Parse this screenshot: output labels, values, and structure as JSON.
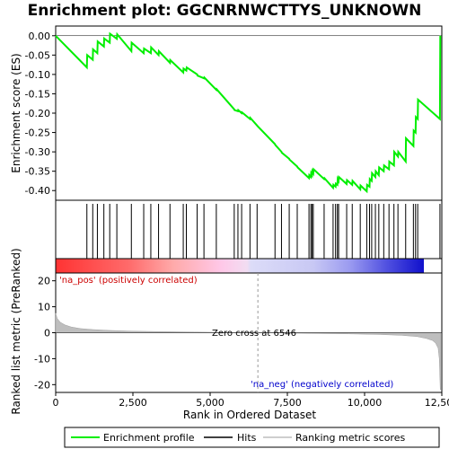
{
  "chart_data": {
    "type": "line",
    "title": "Enrichment plot: GGCNRNWCTTYS_UNKNOWN",
    "xlabel": "Rank in Ordered Dataset",
    "ylabel_top": "Enrichment score (ES)",
    "ylabel_bottom": "Ranked list metric (PreRanked)",
    "x_range": [
      0,
      12500
    ],
    "es_ylim": [
      -0.425,
      0.025
    ],
    "metric_ylim": [
      -23,
      23
    ],
    "x_ticks": [
      0,
      2500,
      5000,
      7500,
      10000,
      12500
    ],
    "x_tick_labels": [
      "0",
      "2,500",
      "5,000",
      "7,500",
      "10,000",
      "12,500"
    ],
    "es_ticks": [
      0.0,
      -0.05,
      -0.1,
      -0.15,
      -0.2,
      -0.25,
      -0.3,
      -0.35,
      -0.4
    ],
    "es_tick_labels": [
      "0.00",
      "-0.05",
      "-0.10",
      "-0.15",
      "-0.20",
      "-0.25",
      "-0.30",
      "-0.35",
      "-0.40"
    ],
    "metric_ticks": [
      20,
      10,
      0,
      -10,
      -20
    ],
    "metric_tick_labels": [
      "20",
      "10",
      "0",
      "-10",
      "-20"
    ],
    "zero_cross": 6546,
    "zero_cross_label": "Zero cross at 6546",
    "pos_label": "'na_pos' (positively correlated)",
    "neg_label": "'na_neg' (negatively correlated)",
    "enrichment_profile": {
      "x": [
        0,
        1010,
        1020,
        1200,
        1210,
        1350,
        1360,
        1560,
        1570,
        1750,
        1760,
        1980,
        1990,
        2450,
        2460,
        2850,
        2860,
        3080,
        3090,
        3330,
        3340,
        3700,
        3710,
        4130,
        4140,
        4230,
        4240,
        4580,
        4590,
        4800,
        4810,
        5200,
        5210,
        5780,
        5790,
        5900,
        5910,
        6020,
        6030,
        6290,
        6300,
        6520,
        6530,
        7100,
        7110,
        7310,
        7320,
        7560,
        7570,
        7820,
        7830,
        8200,
        8210,
        8260,
        8270,
        8300,
        8310,
        8340,
        8350,
        8690,
        8700,
        8980,
        8990,
        9060,
        9070,
        9120,
        9130,
        9160,
        9170,
        9420,
        9430,
        9600,
        9610,
        9860,
        9870,
        10070,
        10080,
        10160,
        10170,
        10230,
        10240,
        10350,
        10360,
        10460,
        10470,
        10620,
        10630,
        10790,
        10800,
        10950,
        10960,
        11080,
        11090,
        11330,
        11340,
        11580,
        11590,
        11650,
        11660,
        11720,
        11730,
        12440,
        12450
      ],
      "y": [
        0.0,
        -0.082,
        -0.05,
        -0.062,
        -0.035,
        -0.045,
        -0.015,
        -0.028,
        -0.007,
        -0.018,
        0.005,
        -0.008,
        0.004,
        -0.04,
        -0.018,
        -0.045,
        -0.033,
        -0.045,
        -0.03,
        -0.05,
        -0.04,
        -0.07,
        -0.063,
        -0.095,
        -0.085,
        -0.09,
        -0.082,
        -0.1,
        -0.103,
        -0.11,
        -0.108,
        -0.14,
        -0.138,
        -0.19,
        -0.192,
        -0.195,
        -0.192,
        -0.2,
        -0.198,
        -0.215,
        -0.212,
        -0.232,
        -0.233,
        -0.28,
        -0.282,
        -0.3,
        -0.302,
        -0.318,
        -0.32,
        -0.338,
        -0.34,
        -0.368,
        -0.36,
        -0.365,
        -0.355,
        -0.36,
        -0.35,
        -0.355,
        -0.345,
        -0.37,
        -0.368,
        -0.393,
        -0.385,
        -0.39,
        -0.382,
        -0.385,
        -0.37,
        -0.375,
        -0.365,
        -0.383,
        -0.373,
        -0.385,
        -0.375,
        -0.397,
        -0.387,
        -0.402,
        -0.385,
        -0.39,
        -0.37,
        -0.375,
        -0.355,
        -0.365,
        -0.35,
        -0.36,
        -0.34,
        -0.35,
        -0.335,
        -0.345,
        -0.325,
        -0.335,
        -0.3,
        -0.312,
        -0.3,
        -0.325,
        -0.265,
        -0.285,
        -0.245,
        -0.25,
        -0.21,
        -0.215,
        -0.165,
        -0.215,
        0.0
      ]
    },
    "hits": [
      1010,
      1200,
      1350,
      1560,
      1750,
      1980,
      2450,
      2850,
      3080,
      3330,
      3700,
      4130,
      4230,
      4580,
      4800,
      5200,
      5780,
      5900,
      6020,
      6290,
      6520,
      7100,
      7310,
      7560,
      7820,
      8200,
      8260,
      8300,
      8340,
      8690,
      8980,
      9060,
      9120,
      9160,
      9420,
      9600,
      9860,
      10070,
      10160,
      10230,
      10350,
      10460,
      10620,
      10790,
      10950,
      11080,
      11330,
      11580,
      11650,
      11720,
      12440
    ],
    "metric_curve": {
      "x": [
        0,
        50,
        150,
        300,
        500,
        800,
        1200,
        1700,
        2500,
        3500,
        4500,
        5500,
        6546,
        7500,
        8500,
        9500,
        10500,
        11200,
        11700,
        12000,
        12200,
        12300,
        12380,
        12420,
        12450,
        12460
      ],
      "y": [
        7.5,
        5.5,
        4.0,
        3.0,
        2.2,
        1.6,
        1.2,
        0.9,
        0.6,
        0.4,
        0.25,
        0.12,
        0.0,
        -0.15,
        -0.3,
        -0.45,
        -0.7,
        -1.0,
        -1.5,
        -2.2,
        -3.0,
        -4.0,
        -6.0,
        -10.0,
        -22.0,
        -22.0
      ]
    },
    "legend": [
      "Enrichment profile",
      "Hits",
      "Ranking metric scores"
    ]
  },
  "colors": {
    "profile": "#00ee00",
    "hits": "#000000",
    "metric": "#bebebe",
    "pos": "#cc0000",
    "neg": "#0000cc",
    "axis": "#000000"
  }
}
